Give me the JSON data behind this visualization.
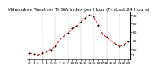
{
  "title": "Milwaukee Weather THSW Index per Hour (F) (Last 24 Hours)",
  "x_values": [
    0,
    1,
    2,
    3,
    4,
    5,
    6,
    7,
    8,
    9,
    10,
    11,
    12,
    13,
    14,
    15,
    16,
    17,
    18,
    19,
    20,
    21,
    22,
    23
  ],
  "y_values": [
    5,
    4,
    3,
    5,
    7,
    9,
    13,
    20,
    25,
    29,
    34,
    37,
    42,
    46,
    50,
    48,
    38,
    28,
    24,
    20,
    16,
    13,
    15,
    19
  ],
  "line_color": "#ff0000",
  "marker_color": "#000000",
  "background_color": "#ffffff",
  "grid_color": "#888888",
  "grid_x_positions": [
    3,
    6,
    9,
    12,
    15,
    18,
    21
  ],
  "ylim": [
    -2,
    54
  ],
  "yticks": [
    4,
    10,
    20,
    30,
    40,
    50
  ],
  "title_fontsize": 4.2,
  "tick_fontsize": 3.2
}
